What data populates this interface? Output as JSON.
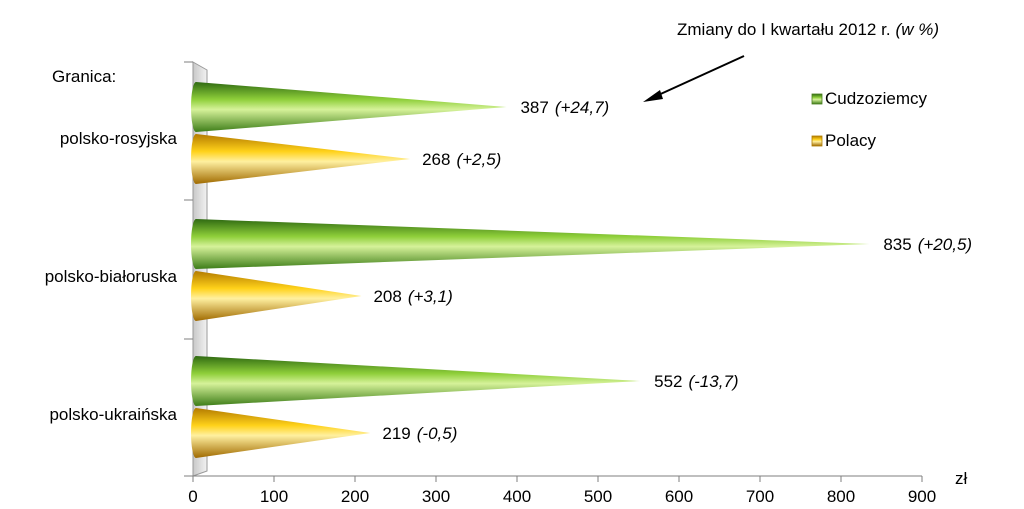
{
  "chart_data": {
    "type": "bar",
    "orientation": "horizontal",
    "title": "",
    "group_heading": "Granica:",
    "annotation": "Zmiany do I kwartału 2012 r.",
    "annotation_unit": "(w %)",
    "unit_label": "zł",
    "categories": [
      "polsko-rosyjska",
      "polsko-białoruska",
      "polsko-ukraińska"
    ],
    "series": [
      {
        "name": "Cudzoziemcy",
        "values": [
          387,
          835,
          552
        ],
        "changes": [
          "(+24,7)",
          "(+20,5)",
          "(-13,7)"
        ],
        "color": "#7dbb2e"
      },
      {
        "name": "Polacy",
        "values": [
          268,
          208,
          219
        ],
        "changes": [
          "(+2,5)",
          "(+3,1)",
          "(-0,5)"
        ],
        "color": "#f2b800"
      }
    ],
    "xlim": [
      0,
      900
    ],
    "x_ticks": [
      "0",
      "100",
      "200",
      "300",
      "400",
      "500",
      "600",
      "700",
      "800",
      "900"
    ],
    "legend_position": "right",
    "grid": false
  }
}
